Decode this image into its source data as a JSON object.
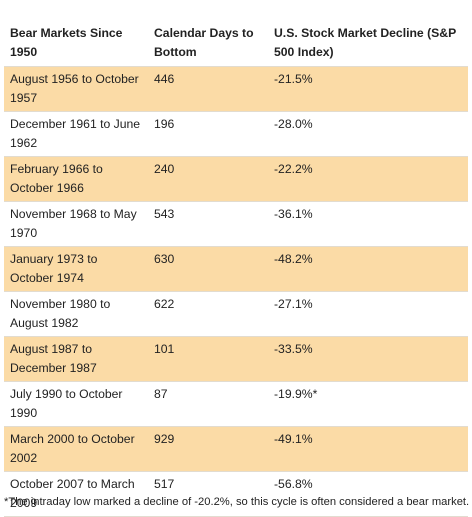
{
  "table": {
    "headers": [
      "Bear Markets Since 1950",
      "Calendar Days to Bottom",
      "U.S. Stock Market Decline (S&P 500 Index)"
    ],
    "rows": [
      {
        "period": "August 1956 to October 1957",
        "days": "446",
        "decline": "-21.5%",
        "shaded": true
      },
      {
        "period": "December 1961 to June 1962",
        "days": "196",
        "decline": "-28.0%",
        "shaded": false
      },
      {
        "period": "February 1966 to October 1966",
        "days": "240",
        "decline": "-22.2%",
        "shaded": true
      },
      {
        "period": "November 1968 to May 1970",
        "days": "543",
        "decline": "-36.1%",
        "shaded": false
      },
      {
        "period": "January 1973 to October 1974",
        "days": "630",
        "decline": "-48.2%",
        "shaded": true
      },
      {
        "period": "November 1980 to August 1982",
        "days": "622",
        "decline": "-27.1%",
        "shaded": false
      },
      {
        "period": "August 1987 to December 1987",
        "days": "101",
        "decline": "-33.5%",
        "shaded": true
      },
      {
        "period": "July 1990 to October 1990",
        "days": "87",
        "decline": "-19.9%*",
        "shaded": false
      },
      {
        "period": "March 2000 to October 2002",
        "days": "929",
        "decline": "-49.1%",
        "shaded": true
      },
      {
        "period": "October 2007 to March 2009",
        "days": "517",
        "decline": "-56.8%",
        "shaded": false
      }
    ]
  },
  "footnote": "*The intraday low marked a decline of -20.2%, so this cycle is often considered a bear market.",
  "colors": {
    "row_highlight": "#fbdba6",
    "text": "#222222"
  }
}
